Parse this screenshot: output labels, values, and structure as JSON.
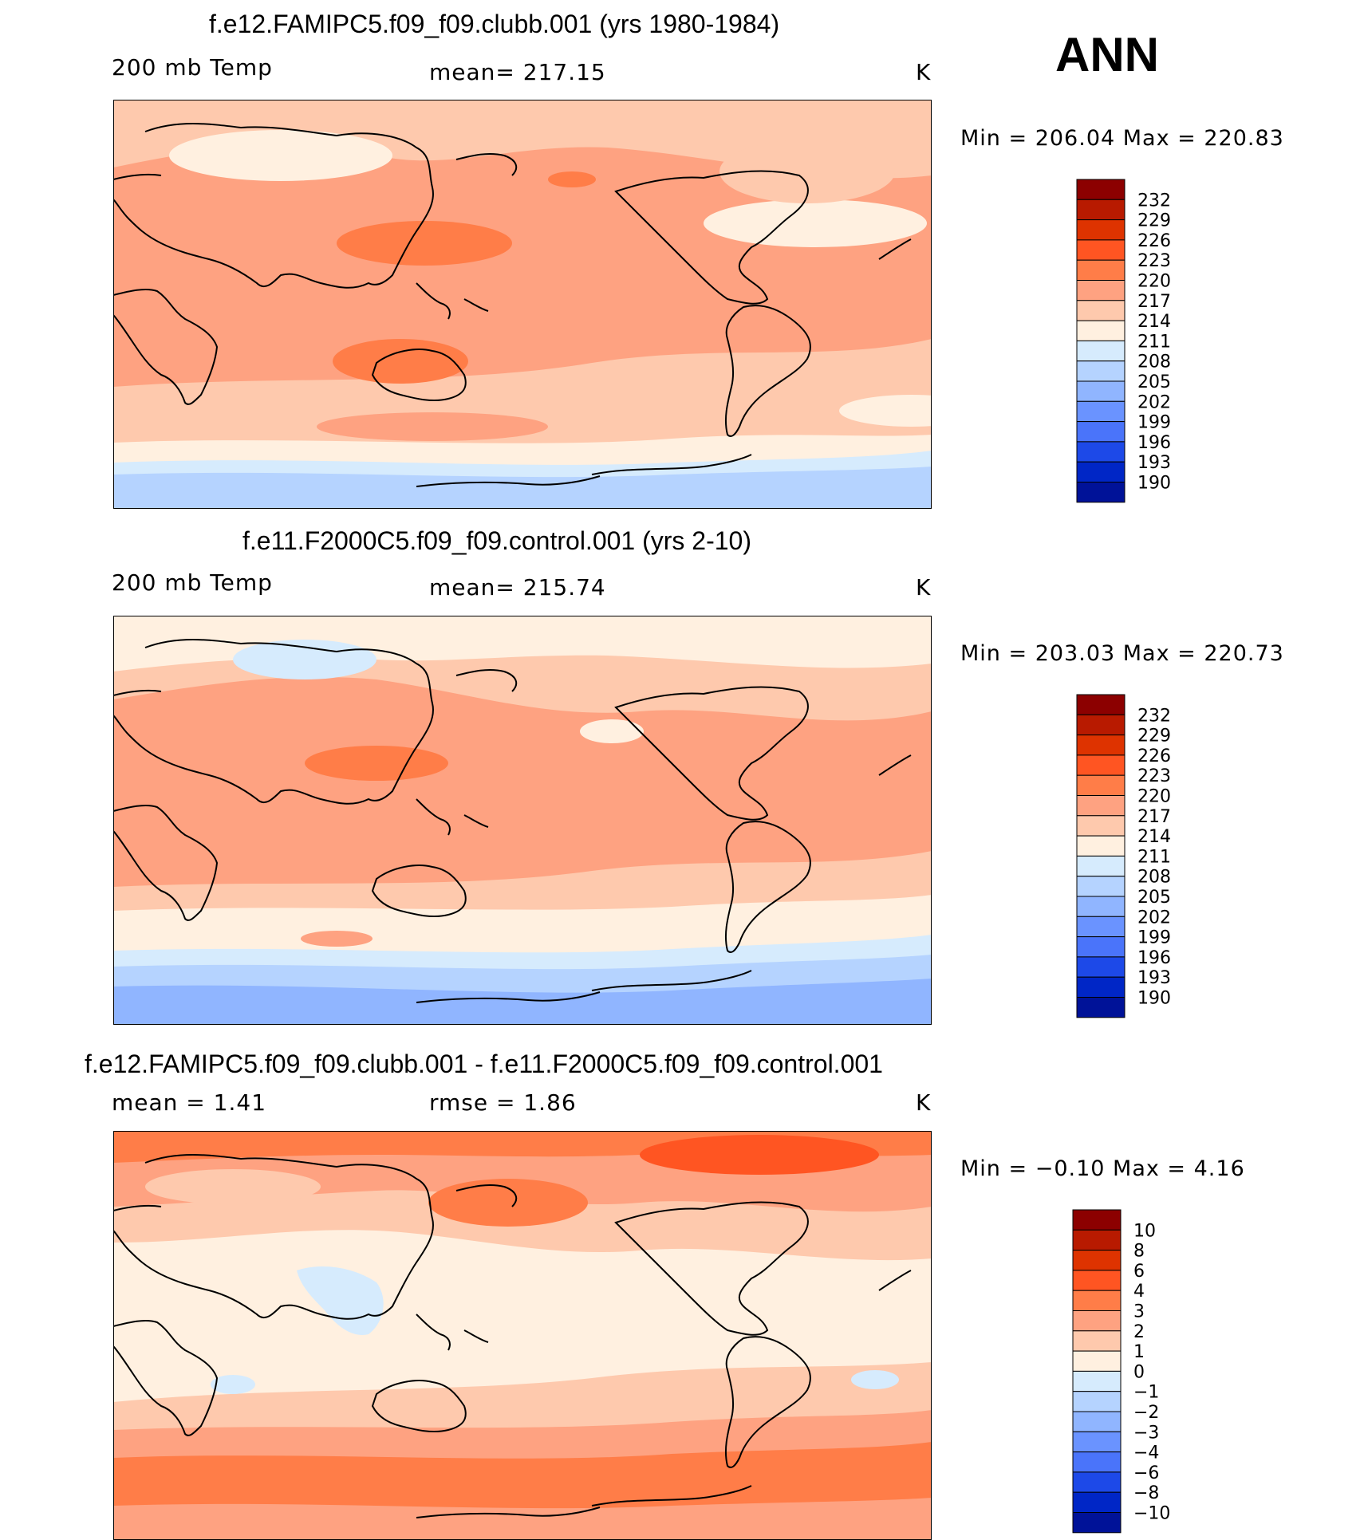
{
  "season": "ANN",
  "panels": [
    {
      "title": "f.e12.FAMIPC5.f09_f09.clubb.001 (yrs 1980-1984)",
      "left_label": "200 mb Temp",
      "center_label": "mean=  217.15",
      "unit": "K",
      "minmax": "Min  =  206.04  Max  =  220.83",
      "colorbar": {
        "labels": [
          "232",
          "229",
          "226",
          "223",
          "220",
          "217",
          "214",
          "211",
          "208",
          "205",
          "202",
          "199",
          "196",
          "193",
          "190"
        ],
        "colors": [
          "#8c0000",
          "#b81a00",
          "#de3300",
          "#ff5522",
          "#ff7d48",
          "#fea281",
          "#fec9ad",
          "#fff0e0",
          "#d6ebfd",
          "#b5d3ff",
          "#90b5ff",
          "#6a93ff",
          "#4a74fa",
          "#1d49e8",
          "#0026c6",
          "#001298"
        ]
      }
    },
    {
      "title": "f.e11.F2000C5.f09_f09.control.001 (yrs 2-10)",
      "left_label": "200 mb Temp",
      "center_label": "mean=  215.74",
      "unit": "K",
      "minmax": "Min  =  203.03  Max  =  220.73",
      "colorbar": {
        "labels": [
          "232",
          "229",
          "226",
          "223",
          "220",
          "217",
          "214",
          "211",
          "208",
          "205",
          "202",
          "199",
          "196",
          "193",
          "190"
        ],
        "colors": [
          "#8c0000",
          "#b81a00",
          "#de3300",
          "#ff5522",
          "#ff7d48",
          "#fea281",
          "#fec9ad",
          "#fff0e0",
          "#d6ebfd",
          "#b5d3ff",
          "#90b5ff",
          "#6a93ff",
          "#4a74fa",
          "#1d49e8",
          "#0026c6",
          "#001298"
        ]
      }
    },
    {
      "title": "f.e12.FAMIPC5.f09_f09.clubb.001 - f.e11.F2000C5.f09_f09.control.001",
      "left_label": "mean  =     1.41",
      "center_label": "rmse  =     1.86",
      "unit": "K",
      "minmax": "Min  =   −0.10  Max  =     4.16",
      "colorbar": {
        "labels": [
          "10",
          "8",
          "6",
          "4",
          "3",
          "2",
          "1",
          "0",
          "−1",
          "−2",
          "−3",
          "−4",
          "−6",
          "−8",
          "−10"
        ],
        "colors": [
          "#8c0000",
          "#b81a00",
          "#de3300",
          "#ff5522",
          "#ff7d48",
          "#fea281",
          "#fec9ad",
          "#fff0e0",
          "#d6ebfd",
          "#b5d3ff",
          "#90b5ff",
          "#6a93ff",
          "#4a74fa",
          "#1d49e8",
          "#0026c6",
          "#001298"
        ]
      }
    }
  ],
  "palette": {
    "c217_220": "#fea281",
    "c214_217": "#fec9ad",
    "c220_223": "#ff7d48",
    "c211_214": "#fff0e0",
    "c208_211": "#d6ebfd",
    "c205_208": "#b5d3ff",
    "c202_205": "#90b5ff",
    "coast": "#000000"
  }
}
